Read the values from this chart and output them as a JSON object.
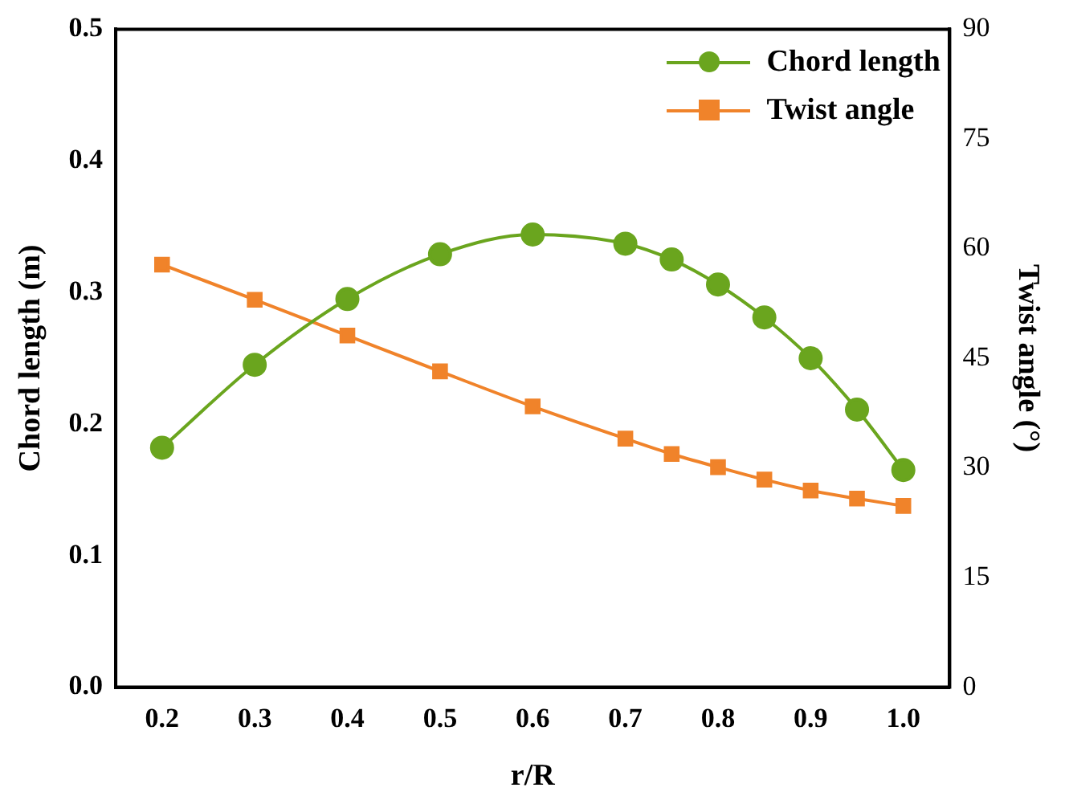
{
  "chart_data": {
    "type": "line",
    "xlabel": "r/R",
    "ylabel": "Chord length (m)",
    "y2label": "Twist angle (°)",
    "x": [
      0.2,
      0.3,
      0.4,
      0.5,
      0.6,
      0.7,
      0.75,
      0.8,
      0.85,
      0.9,
      0.95,
      1.0
    ],
    "series": [
      {
        "name": "Chord length",
        "color": "#6aa51e",
        "marker": "circle",
        "values": [
          0.182,
          0.245,
          0.295,
          0.329,
          0.344,
          0.337,
          0.325,
          0.306,
          0.281,
          0.25,
          0.211,
          0.165
        ]
      },
      {
        "name": "Twist angle",
        "color": "#f0832a",
        "marker": "square",
        "axis": "y2",
        "values": [
          57.8,
          53.0,
          48.1,
          43.2,
          38.4,
          34.0,
          31.9,
          30.1,
          28.4,
          26.9,
          25.8,
          24.8
        ]
      }
    ],
    "xlim": [
      0.15,
      1.05
    ],
    "xticks": [
      0.2,
      0.3,
      0.4,
      0.5,
      0.6,
      0.7,
      0.8,
      0.9,
      {
        "value": 1,
        "label": "1.0"
      }
    ],
    "ylim": [
      0,
      0.5
    ],
    "yticks": [
      {
        "value": 0,
        "label": "0.0"
      },
      0.1,
      0.2,
      0.3,
      0.4,
      0.5
    ],
    "y2lim": [
      0,
      90
    ],
    "y2ticks": [
      0,
      15,
      30,
      45,
      60,
      75,
      90
    ],
    "grid": false,
    "legend": "top right"
  }
}
